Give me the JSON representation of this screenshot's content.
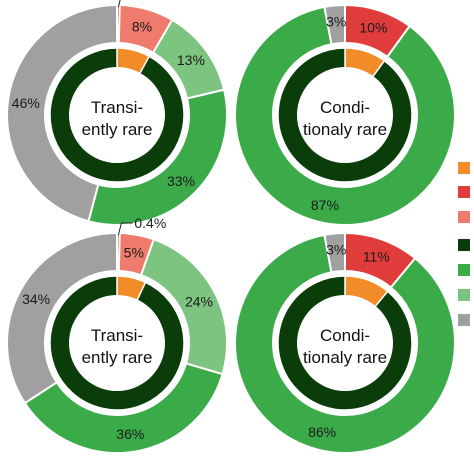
{
  "colors": {
    "orange": "#f28c28",
    "red": "#e03c3c",
    "salmon": "#ee7b6b",
    "dark_green": "#0a3d0a",
    "green": "#3bab4a",
    "light_green": "#7cc47f",
    "gray": "#a0a0a0",
    "background": "#ffffff"
  },
  "legend": [
    {
      "color": "orange"
    },
    {
      "color": "red"
    },
    {
      "color": "salmon"
    },
    {
      "color": "dark_green"
    },
    {
      "color": "green"
    },
    {
      "color": "light_green"
    },
    {
      "color": "gray"
    }
  ],
  "chart_data": [
    {
      "type": "pie",
      "center_label": [
        "Transi-",
        "ently rare"
      ],
      "outer": [
        {
          "value": 0.4,
          "label": "0.4%",
          "color": "red"
        },
        {
          "value": 8,
          "label": "8%",
          "color": "salmon"
        },
        {
          "value": 13,
          "label": "13%",
          "color": "light_green"
        },
        {
          "value": 33,
          "label": "33%",
          "color": "green"
        },
        {
          "value": 46,
          "label": "46%",
          "color": "gray"
        }
      ],
      "inner": [
        {
          "value": 8,
          "color": "orange"
        },
        {
          "value": 92,
          "color": "dark_green"
        }
      ]
    },
    {
      "type": "pie",
      "center_label": [
        "Condi-",
        "tionaly rare"
      ],
      "outer": [
        {
          "value": 10,
          "label": "10%",
          "color": "red"
        },
        {
          "value": 87,
          "label": "87%",
          "color": "green"
        },
        {
          "value": 3,
          "label": "3%",
          "color": "gray"
        }
      ],
      "inner": [
        {
          "value": 10,
          "color": "orange"
        },
        {
          "value": 90,
          "color": "dark_green"
        }
      ]
    },
    {
      "type": "pie",
      "center_label": [
        "Transi-",
        "ently rare"
      ],
      "outer": [
        {
          "value": 0.4,
          "label": "0.4%",
          "color": "red"
        },
        {
          "value": 5,
          "label": "5%",
          "color": "salmon"
        },
        {
          "value": 24,
          "label": "24%",
          "color": "light_green"
        },
        {
          "value": 36,
          "label": "36%",
          "color": "green"
        },
        {
          "value": 34,
          "label": "34%",
          "color": "gray"
        }
      ],
      "inner": [
        {
          "value": 7,
          "color": "orange"
        },
        {
          "value": 93,
          "color": "dark_green"
        }
      ]
    },
    {
      "type": "pie",
      "center_label": [
        "Condi-",
        "tionaly rare"
      ],
      "outer": [
        {
          "value": 11,
          "label": "11%",
          "color": "red"
        },
        {
          "value": 86,
          "label": "86%",
          "color": "green"
        },
        {
          "value": 3,
          "label": "3%",
          "color": "gray"
        }
      ],
      "inner": [
        {
          "value": 11,
          "color": "orange"
        },
        {
          "value": 89,
          "color": "dark_green"
        }
      ]
    }
  ]
}
